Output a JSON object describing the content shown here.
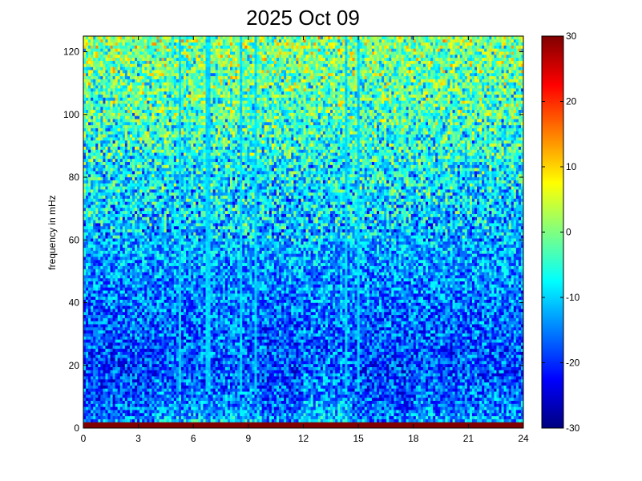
{
  "chart_data": {
    "type": "heatmap",
    "title": "2025 Oct 09",
    "xlabel": "",
    "ylabel": "frequency in mHz",
    "xlim": [
      0,
      24
    ],
    "ylim": [
      0,
      125
    ],
    "x_ticks": [
      0,
      3,
      6,
      9,
      12,
      15,
      18,
      21,
      24
    ],
    "x_tick_labels": [
      "0",
      "3",
      "6",
      "9",
      "12",
      "15",
      "18",
      "21",
      "24"
    ],
    "y_ticks": [
      0,
      20,
      40,
      60,
      80,
      100,
      120
    ],
    "y_tick_labels": [
      "0",
      "20",
      "40",
      "60",
      "80",
      "100",
      "120"
    ],
    "colorbar": {
      "range": [
        -30,
        30
      ],
      "ticks": [
        30,
        20,
        10,
        0,
        -10,
        -20,
        -30
      ],
      "tick_labels": [
        "30",
        "20",
        "10",
        "0",
        "-10",
        "-20",
        "-30"
      ],
      "colormap": "jet"
    },
    "grid": false,
    "vertical_lines_hours": [
      5.3,
      6.8,
      8.6,
      9.4,
      14.3,
      15.0
    ]
  }
}
